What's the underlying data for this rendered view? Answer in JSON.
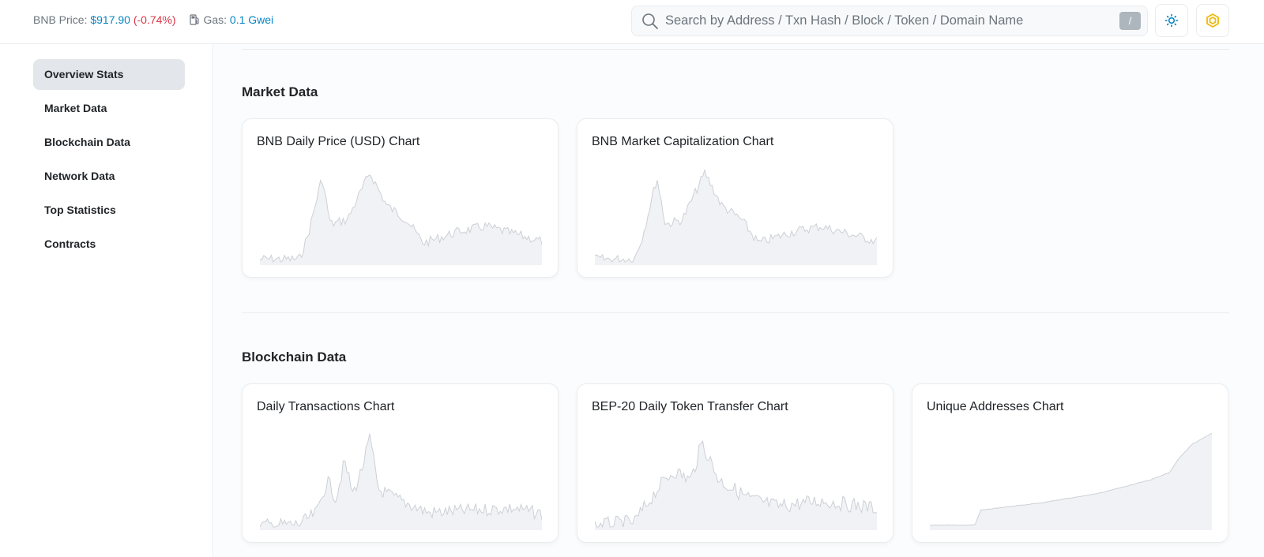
{
  "header": {
    "bnb_price_label": "BNB Price:",
    "bnb_price_value": "$917.90",
    "bnb_price_change": "(-0.74%)",
    "gas_label": "Gas:",
    "gas_value": "0.1 Gwei",
    "search_placeholder": "Search by Address / Txn Hash / Block / Token / Domain Name",
    "search_shortcut": "/",
    "icons": {
      "search": "search-icon",
      "gas": "gas-pump-icon",
      "theme": "sun-icon",
      "network": "bnb-logo-icon"
    },
    "colors": {
      "link": "#0784c3",
      "negative": "#dc3545",
      "bnb": "#f0b90b"
    }
  },
  "sidebar": {
    "items": [
      {
        "label": "Overview Stats",
        "active": true
      },
      {
        "label": "Market Data",
        "active": false
      },
      {
        "label": "Blockchain Data",
        "active": false
      },
      {
        "label": "Network Data",
        "active": false
      },
      {
        "label": "Top Statistics",
        "active": false
      },
      {
        "label": "Contracts",
        "active": false
      }
    ]
  },
  "sections": {
    "market": {
      "title": "Market Data",
      "cards": [
        {
          "title": "BNB Daily Price (USD) Chart"
        },
        {
          "title": "BNB Market Capitalization Chart"
        }
      ]
    },
    "blockchain": {
      "title": "Blockchain Data",
      "cards": [
        {
          "title": "Daily Transactions Chart"
        },
        {
          "title": "BEP-20 Daily Token Transfer Chart"
        },
        {
          "title": "Unique Addresses Chart"
        }
      ]
    }
  }
}
